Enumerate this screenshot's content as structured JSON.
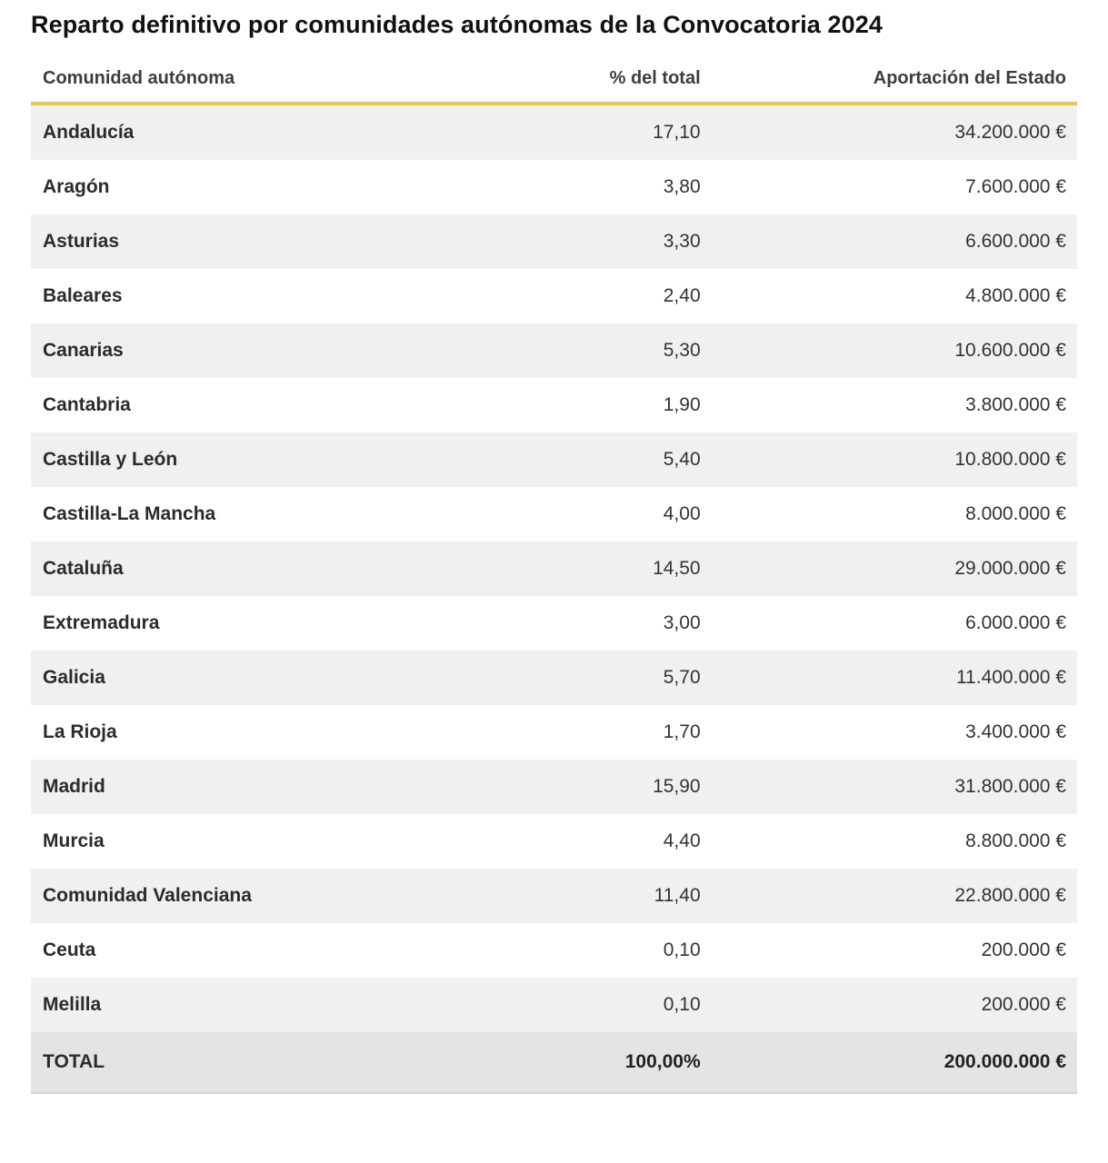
{
  "title": "Reparto definitivo por comunidades autónomas de la Convocatoria 2024",
  "table": {
    "columns": {
      "name": "Comunidad autónoma",
      "pct": "% del total",
      "amount": "Aportación del Estado"
    },
    "rows": [
      {
        "name": "Andalucía",
        "pct": "17,10",
        "amount": "34.200.000 €"
      },
      {
        "name": "Aragón",
        "pct": "3,80",
        "amount": "7.600.000 €"
      },
      {
        "name": "Asturias",
        "pct": "3,30",
        "amount": "6.600.000 €"
      },
      {
        "name": "Baleares",
        "pct": "2,40",
        "amount": "4.800.000 €"
      },
      {
        "name": "Canarias",
        "pct": "5,30",
        "amount": "10.600.000 €"
      },
      {
        "name": "Cantabria",
        "pct": "1,90",
        "amount": "3.800.000 €"
      },
      {
        "name": "Castilla y León",
        "pct": "5,40",
        "amount": "10.800.000 €"
      },
      {
        "name": "Castilla-La Mancha",
        "pct": "4,00",
        "amount": "8.000.000 €"
      },
      {
        "name": "Cataluña",
        "pct": "14,50",
        "amount": "29.000.000 €"
      },
      {
        "name": "Extremadura",
        "pct": "3,00",
        "amount": "6.000.000 €"
      },
      {
        "name": "Galicia",
        "pct": "5,70",
        "amount": "11.400.000 €"
      },
      {
        "name": "La Rioja",
        "pct": "1,70",
        "amount": "3.400.000 €"
      },
      {
        "name": "Madrid",
        "pct": "15,90",
        "amount": "31.800.000 €"
      },
      {
        "name": "Murcia",
        "pct": "4,40",
        "amount": "8.800.000 €"
      },
      {
        "name": "Comunidad Valenciana",
        "pct": "11,40",
        "amount": "22.800.000 €"
      },
      {
        "name": "Ceuta",
        "pct": "0,10",
        "amount": "200.000 €"
      },
      {
        "name": "Melilla",
        "pct": "0,10",
        "amount": "200.000 €"
      }
    ],
    "total": {
      "name": "TOTAL",
      "pct": "100,00%",
      "amount": "200.000.000 €"
    }
  },
  "colors": {
    "accent_gold_rule": "#e6c45f",
    "row_stripe": "#f0f0f0",
    "total_row_bg": "#e4e4e4",
    "text": "#333333",
    "title_text": "#111111"
  },
  "chart_data": {
    "type": "table",
    "title": "Reparto definitivo por comunidades autónomas de la Convocatoria 2024",
    "columns": [
      "Comunidad autónoma",
      "% del total",
      "Aportación del Estado (EUR)"
    ],
    "rows": [
      [
        "Andalucía",
        17.1,
        34200000
      ],
      [
        "Aragón",
        3.8,
        7600000
      ],
      [
        "Asturias",
        3.3,
        6600000
      ],
      [
        "Baleares",
        2.4,
        4800000
      ],
      [
        "Canarias",
        5.3,
        10600000
      ],
      [
        "Cantabria",
        1.9,
        3800000
      ],
      [
        "Castilla y León",
        5.4,
        10800000
      ],
      [
        "Castilla-La Mancha",
        4.0,
        8000000
      ],
      [
        "Cataluña",
        14.5,
        29000000
      ],
      [
        "Extremadura",
        3.0,
        6000000
      ],
      [
        "Galicia",
        5.7,
        11400000
      ],
      [
        "La Rioja",
        1.7,
        3400000
      ],
      [
        "Madrid",
        15.9,
        31800000
      ],
      [
        "Murcia",
        4.4,
        8800000
      ],
      [
        "Comunidad Valenciana",
        11.4,
        22800000
      ],
      [
        "Ceuta",
        0.1,
        200000
      ],
      [
        "Melilla",
        0.1,
        200000
      ]
    ],
    "total_row": [
      "TOTAL",
      100.0,
      200000000
    ],
    "units": {
      "pct": "%",
      "amount": "EUR"
    },
    "layout": {
      "stripe_start": "first-data-row",
      "header_rule_color": "#e6c45f"
    }
  }
}
